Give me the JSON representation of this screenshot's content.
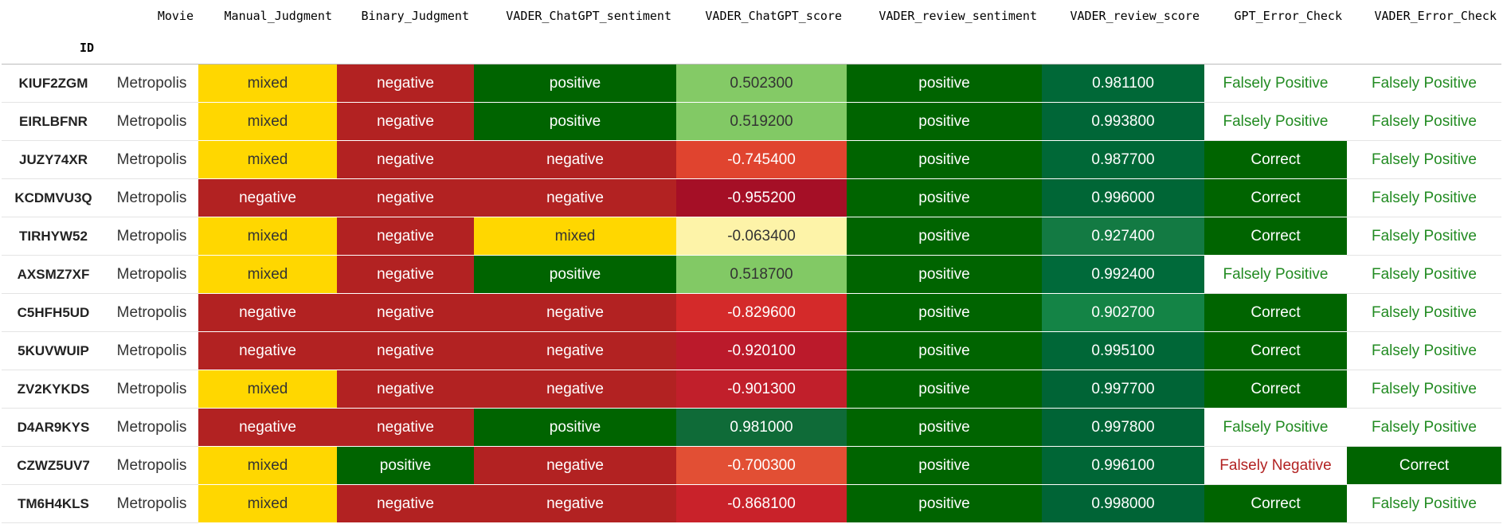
{
  "table": {
    "index_name": "ID",
    "columns": [
      "Movie",
      "Manual_Judgment",
      "Binary_Judgment",
      "VADER_ChatGPT_sentiment",
      "VADER_ChatGPT_score",
      "VADER_review_sentiment",
      "VADER_review_score",
      "GPT_Error_Check",
      "VADER_Error_Check"
    ],
    "rows": [
      {
        "id": "KIUF2ZGM",
        "cells": [
          "Metropolis",
          "mixed",
          "negative",
          "positive",
          "0.502300",
          "positive",
          "0.981100",
          "Falsely Positive",
          "Falsely Positive"
        ],
        "backgrounds": [
          null,
          "#ffd700",
          "#b22222",
          "#006400",
          "#84ca66",
          "#006400",
          "#006837",
          null,
          null
        ],
        "text_colors": [
          "#333333",
          "#333333",
          "#ffffff",
          "#ffffff",
          "#333333",
          "#ffffff",
          "#ffffff",
          "#228b22",
          "#228b22"
        ]
      },
      {
        "id": "EIRLBFNR",
        "cells": [
          "Metropolis",
          "mixed",
          "negative",
          "positive",
          "0.519200",
          "positive",
          "0.993800",
          "Falsely Positive",
          "Falsely Positive"
        ],
        "backgrounds": [
          null,
          "#ffd700",
          "#b22222",
          "#006400",
          "#82c965",
          "#006400",
          "#006637",
          null,
          null
        ],
        "text_colors": [
          "#333333",
          "#333333",
          "#ffffff",
          "#ffffff",
          "#333333",
          "#ffffff",
          "#ffffff",
          "#228b22",
          "#228b22"
        ]
      },
      {
        "id": "JUZY74XR",
        "cells": [
          "Metropolis",
          "mixed",
          "negative",
          "negative",
          "-0.745400",
          "positive",
          "0.987700",
          "Correct",
          "Falsely Positive"
        ],
        "backgrounds": [
          null,
          "#ffd700",
          "#b22222",
          "#b22222",
          "#e0442f",
          "#006400",
          "#006837",
          "#006400",
          null
        ],
        "text_colors": [
          "#333333",
          "#333333",
          "#ffffff",
          "#ffffff",
          "#ffffff",
          "#ffffff",
          "#ffffff",
          "#ffffff",
          "#228b22"
        ]
      },
      {
        "id": "KCDMVU3Q",
        "cells": [
          "Metropolis",
          "negative",
          "negative",
          "negative",
          "-0.955200",
          "positive",
          "0.996000",
          "Correct",
          "Falsely Positive"
        ],
        "backgrounds": [
          null,
          "#b22222",
          "#b22222",
          "#b22222",
          "#a50f26",
          "#006400",
          "#006636",
          "#006400",
          null
        ],
        "text_colors": [
          "#333333",
          "#ffffff",
          "#ffffff",
          "#ffffff",
          "#ffffff",
          "#ffffff",
          "#ffffff",
          "#ffffff",
          "#228b22"
        ]
      },
      {
        "id": "TIRHYW52",
        "cells": [
          "Metropolis",
          "mixed",
          "negative",
          "mixed",
          "-0.063400",
          "positive",
          "0.927400",
          "Correct",
          "Falsely Positive"
        ],
        "backgrounds": [
          null,
          "#ffd700",
          "#b22222",
          "#ffd700",
          "#fdf3a8",
          "#006400",
          "#137a43",
          "#006400",
          null
        ],
        "text_colors": [
          "#333333",
          "#333333",
          "#ffffff",
          "#333333",
          "#333333",
          "#ffffff",
          "#ffffff",
          "#ffffff",
          "#228b22"
        ]
      },
      {
        "id": "AXSMZ7XF",
        "cells": [
          "Metropolis",
          "mixed",
          "negative",
          "positive",
          "0.518700",
          "positive",
          "0.992400",
          "Falsely Positive",
          "Falsely Positive"
        ],
        "backgrounds": [
          null,
          "#ffd700",
          "#b22222",
          "#006400",
          "#82c965",
          "#006400",
          "#006a3a",
          null,
          null
        ],
        "text_colors": [
          "#333333",
          "#333333",
          "#ffffff",
          "#ffffff",
          "#333333",
          "#ffffff",
          "#ffffff",
          "#228b22",
          "#228b22"
        ]
      },
      {
        "id": "C5HFH5UD",
        "cells": [
          "Metropolis",
          "negative",
          "negative",
          "negative",
          "-0.829600",
          "positive",
          "0.902700",
          "Correct",
          "Falsely Positive"
        ],
        "backgrounds": [
          null,
          "#b22222",
          "#b22222",
          "#b22222",
          "#d42a2a",
          "#006400",
          "#148446",
          "#006400",
          null
        ],
        "text_colors": [
          "#333333",
          "#ffffff",
          "#ffffff",
          "#ffffff",
          "#ffffff",
          "#ffffff",
          "#ffffff",
          "#ffffff",
          "#228b22"
        ]
      },
      {
        "id": "5KUVWUIP",
        "cells": [
          "Metropolis",
          "negative",
          "negative",
          "negative",
          "-0.920100",
          "positive",
          "0.995100",
          "Correct",
          "Falsely Positive"
        ],
        "backgrounds": [
          null,
          "#b22222",
          "#b22222",
          "#b22222",
          "#bb1a2b",
          "#006400",
          "#006737",
          "#006400",
          null
        ],
        "text_colors": [
          "#333333",
          "#ffffff",
          "#ffffff",
          "#ffffff",
          "#ffffff",
          "#ffffff",
          "#ffffff",
          "#ffffff",
          "#228b22"
        ]
      },
      {
        "id": "ZV2KYKDS",
        "cells": [
          "Metropolis",
          "mixed",
          "negative",
          "negative",
          "-0.901300",
          "positive",
          "0.997700",
          "Correct",
          "Falsely Positive"
        ],
        "backgrounds": [
          null,
          "#ffd700",
          "#b22222",
          "#b22222",
          "#c11f2b",
          "#006400",
          "#006436",
          "#006400",
          null
        ],
        "text_colors": [
          "#333333",
          "#333333",
          "#ffffff",
          "#ffffff",
          "#ffffff",
          "#ffffff",
          "#ffffff",
          "#ffffff",
          "#228b22"
        ]
      },
      {
        "id": "D4AR9KYS",
        "cells": [
          "Metropolis",
          "negative",
          "negative",
          "positive",
          "0.981000",
          "positive",
          "0.997800",
          "Falsely Positive",
          "Falsely Positive"
        ],
        "backgrounds": [
          null,
          "#b22222",
          "#b22222",
          "#006400",
          "#0f6b38",
          "#006400",
          "#006436",
          null,
          null
        ],
        "text_colors": [
          "#333333",
          "#ffffff",
          "#ffffff",
          "#ffffff",
          "#ffffff",
          "#ffffff",
          "#ffffff",
          "#228b22",
          "#228b22"
        ]
      },
      {
        "id": "CZWZ5UV7",
        "cells": [
          "Metropolis",
          "mixed",
          "positive",
          "negative",
          "-0.700300",
          "positive",
          "0.996100",
          "Falsely Negative",
          "Correct"
        ],
        "backgrounds": [
          null,
          "#ffd700",
          "#006400",
          "#b22222",
          "#e24f34",
          "#006400",
          "#006636",
          null,
          "#006400"
        ],
        "text_colors": [
          "#333333",
          "#333333",
          "#ffffff",
          "#ffffff",
          "#ffffff",
          "#ffffff",
          "#ffffff",
          "#b22222",
          "#ffffff"
        ]
      },
      {
        "id": "TM6H4KLS",
        "cells": [
          "Metropolis",
          "mixed",
          "negative",
          "negative",
          "-0.868100",
          "positive",
          "0.998000",
          "Correct",
          "Falsely Positive"
        ],
        "backgrounds": [
          null,
          "#ffd700",
          "#b22222",
          "#b22222",
          "#c9222a",
          "#006400",
          "#006436",
          "#006400",
          null
        ],
        "text_colors": [
          "#333333",
          "#333333",
          "#ffffff",
          "#ffffff",
          "#ffffff",
          "#ffffff",
          "#ffffff",
          "#ffffff",
          "#228b22"
        ]
      }
    ]
  }
}
